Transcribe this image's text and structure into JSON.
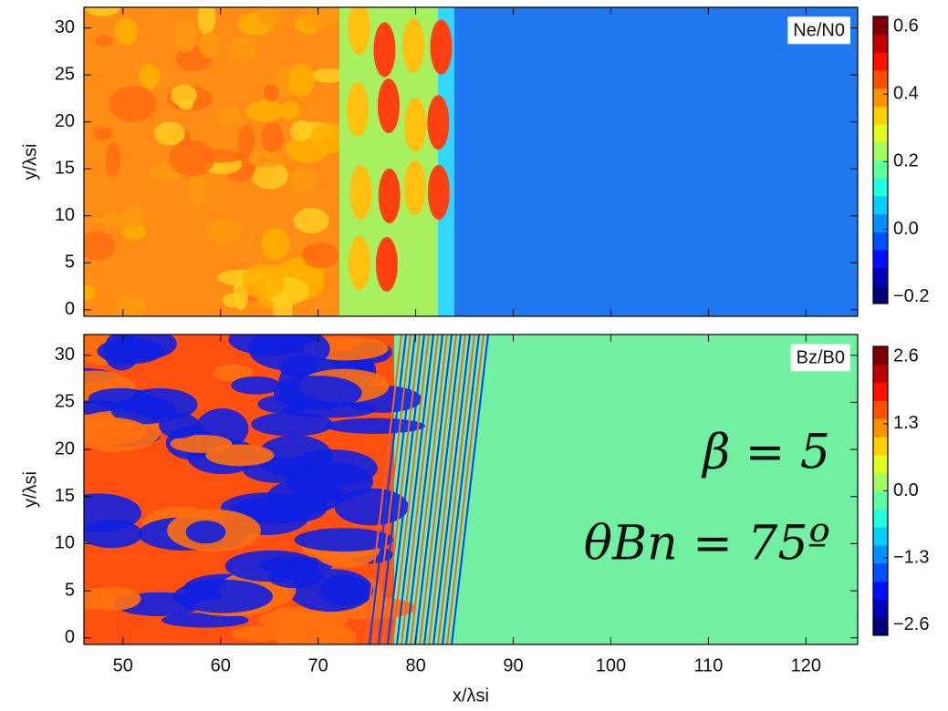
{
  "chart_data": [
    {
      "type": "heatmap",
      "label": "Ne/N0",
      "ylabel": "y/λsi",
      "xlim": [
        46,
        125.3
      ],
      "xticks": [
        50,
        60,
        70,
        80,
        90,
        100,
        110,
        120
      ],
      "ylim": [
        -0.7,
        32.2
      ],
      "yticks": [
        0,
        5,
        10,
        15,
        20,
        25,
        30
      ],
      "clim": [
        -0.22,
        0.63
      ],
      "cticks": [
        {
          "value": -0.2,
          "label": "−0.2"
        },
        {
          "value": 0,
          "label": "0.0"
        },
        0.2,
        0.4,
        0.6
      ]
    },
    {
      "type": "heatmap",
      "label": "Bz/B0",
      "ylabel": "y/λsi",
      "xlabel": "x/λsi",
      "xlim": [
        46,
        125.3
      ],
      "xticks": [
        50,
        60,
        70,
        80,
        90,
        100,
        110,
        120
      ],
      "ylim": [
        -0.7,
        32.2
      ],
      "yticks": [
        0,
        5,
        10,
        15,
        20,
        25,
        30
      ],
      "clim": [
        -2.8,
        2.8
      ],
      "cticks": [
        {
          "value": -2.6,
          "label": "−2.6"
        },
        {
          "value": -1.3,
          "label": "−1.3"
        },
        {
          "value": 0,
          "label": "0.0"
        },
        1.3,
        2.6
      ],
      "annotations": [
        "β = 5",
        "θBn = 75º"
      ]
    }
  ]
}
